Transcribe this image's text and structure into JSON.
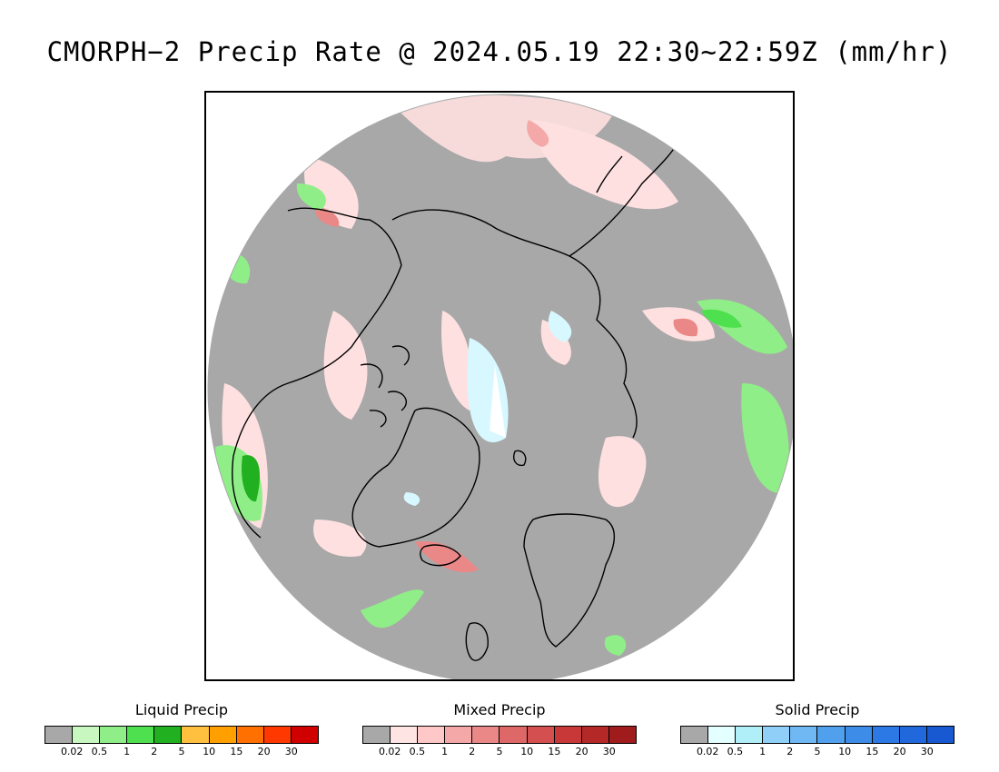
{
  "title": "CMORPH−2 Precip Rate @ 2024.05.19 22:30~22:59Z (mm/hr)",
  "map": {
    "projection": "north polar stereographic",
    "background_color": "#a8a8a8",
    "coastline_color": "#000000",
    "features": [
      "Greenland",
      "Iceland",
      "Scandinavia",
      "Alaska",
      "Canadian Arctic Archipelago",
      "Siberia",
      "British Isles"
    ]
  },
  "legends": [
    {
      "title": "Liquid Precip",
      "colors": [
        "#a8a8a8",
        "#c8f8c0",
        "#90ee88",
        "#4ee04e",
        "#20b020",
        "#ffc040",
        "#ffa000",
        "#ff7000",
        "#ff3800",
        "#d00000"
      ],
      "ticks": [
        "0.02",
        "0.5",
        "1",
        "2",
        "5",
        "10",
        "15",
        "20",
        "30"
      ]
    },
    {
      "title": "Mixed Precip",
      "colors": [
        "#a8a8a8",
        "#ffe4e4",
        "#ffc8c8",
        "#f4a8a8",
        "#ea8888",
        "#de6868",
        "#d45050",
        "#c83838",
        "#b42828",
        "#a01c1c"
      ],
      "ticks": [
        "0.02",
        "0.5",
        "1",
        "2",
        "5",
        "10",
        "15",
        "20",
        "30"
      ]
    },
    {
      "title": "Solid Precip",
      "colors": [
        "#a8a8a8",
        "#e4ffff",
        "#b0eef8",
        "#90d0f8",
        "#70b8f4",
        "#50a0ee",
        "#3c8ce8",
        "#2c78e4",
        "#2068dc",
        "#1858d0"
      ],
      "ticks": [
        "0.02",
        "0.5",
        "1",
        "2",
        "5",
        "10",
        "15",
        "20",
        "30"
      ]
    }
  ]
}
